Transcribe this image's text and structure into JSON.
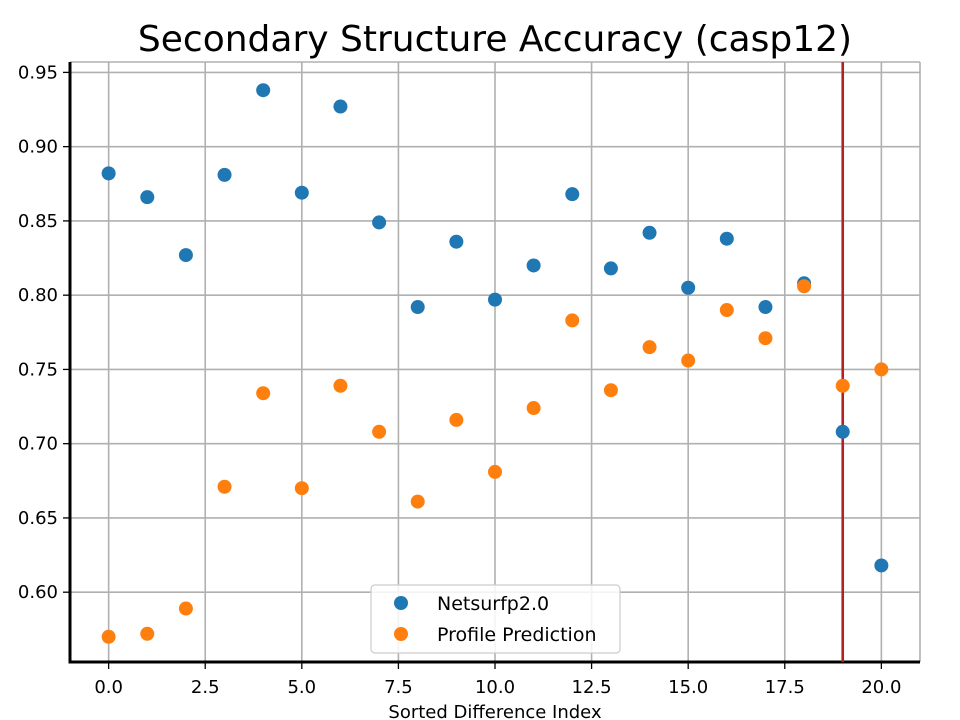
{
  "chart_data": {
    "type": "scatter",
    "title": "Secondary Structure Accuracy (casp12)",
    "xlabel": "Sorted Difference Index",
    "ylabel": "",
    "xlim": [
      -1.0,
      21.0
    ],
    "ylim": [
      0.553,
      0.957
    ],
    "xticks": [
      0.0,
      2.5,
      5.0,
      7.5,
      10.0,
      12.5,
      15.0,
      17.5,
      20.0
    ],
    "xtick_labels": [
      "0.0",
      "2.5",
      "5.0",
      "7.5",
      "10.0",
      "12.5",
      "15.0",
      "17.5",
      "20.0"
    ],
    "yticks": [
      0.6,
      0.65,
      0.7,
      0.75,
      0.8,
      0.85,
      0.9,
      0.95
    ],
    "ytick_labels": [
      "0.60",
      "0.65",
      "0.70",
      "0.75",
      "0.80",
      "0.85",
      "0.90",
      "0.95"
    ],
    "grid": true,
    "legend_position": "bottom-center",
    "vline": {
      "x": 19,
      "color": "#b22222"
    },
    "x": [
      0,
      1,
      2,
      3,
      4,
      5,
      6,
      7,
      8,
      9,
      10,
      11,
      12,
      13,
      14,
      15,
      16,
      17,
      18,
      19,
      20
    ],
    "series": [
      {
        "name": "Netsurfp2.0",
        "color": "#1f77b4",
        "values": [
          0.882,
          0.866,
          0.827,
          0.881,
          0.938,
          0.869,
          0.927,
          0.849,
          0.792,
          0.836,
          0.797,
          0.82,
          0.868,
          0.818,
          0.842,
          0.805,
          0.838,
          0.792,
          0.808,
          0.708,
          0.618
        ]
      },
      {
        "name": "Profile Prediction",
        "color": "#ff7f0e",
        "values": [
          0.57,
          0.572,
          0.589,
          0.671,
          0.734,
          0.67,
          0.739,
          0.708,
          0.661,
          0.716,
          0.681,
          0.724,
          0.783,
          0.736,
          0.765,
          0.756,
          0.79,
          0.771,
          0.806,
          0.739,
          0.75
        ]
      }
    ]
  }
}
